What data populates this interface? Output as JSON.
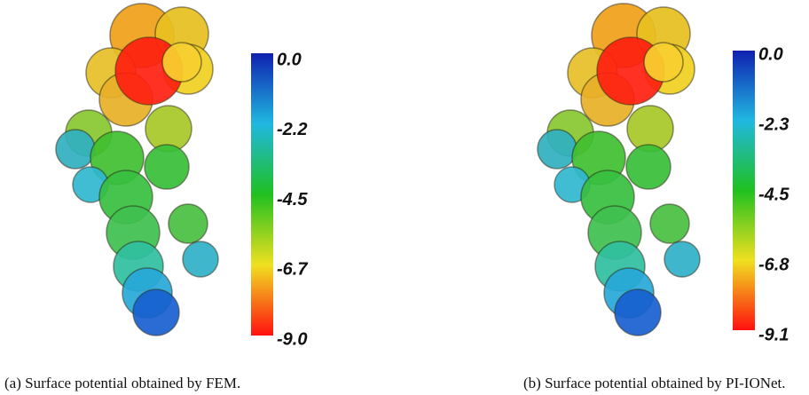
{
  "panels": [
    {
      "colorbar": {
        "ticks": [
          "0.0",
          "-2.2",
          "-4.5",
          "-6.7",
          "-9.0"
        ]
      },
      "caption": "(a)  Surface potential obtained by FEM."
    },
    {
      "colorbar": {
        "ticks": [
          "0.0",
          "-2.3",
          "-4.5",
          "-6.8",
          "-9.1"
        ]
      },
      "caption": "(b)  Surface potential obtained by PI-IONet."
    }
  ]
}
